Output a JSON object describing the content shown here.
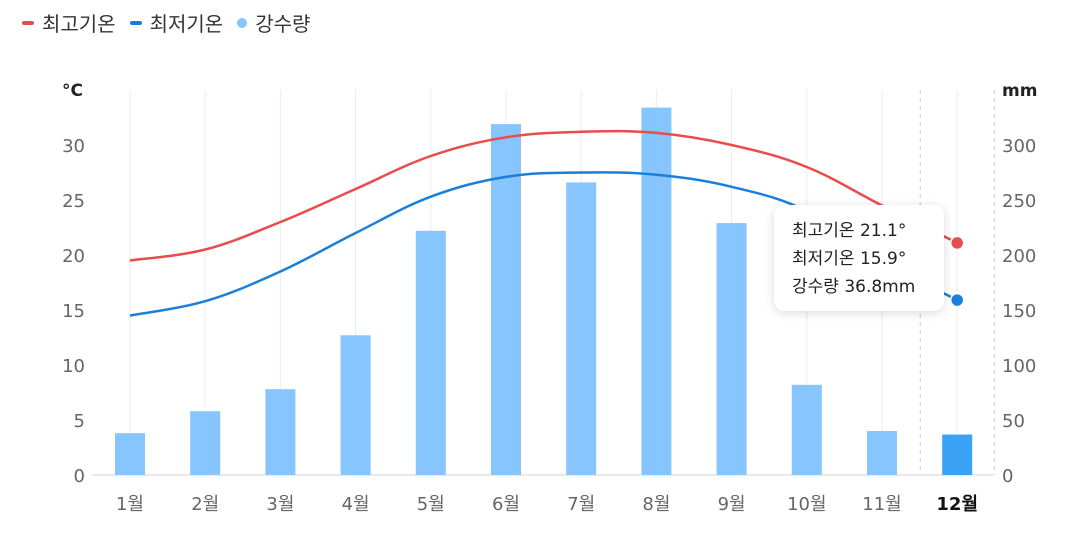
{
  "legend": {
    "high_label": "최고기온",
    "low_label": "최저기온",
    "rain_label": "강수량"
  },
  "tooltip": {
    "high": "최고기온 21.1°",
    "low": "최저기온 15.9°",
    "rain": "강수량 36.8mm"
  },
  "colors": {
    "high": "#e84c4c",
    "low": "#1a7fdc",
    "bar": "#86c5fd",
    "bar_selected": "#3aa3f5",
    "grid": "#ececec",
    "axis_text": "#666666"
  },
  "chart_data": {
    "type": "bar",
    "categories": [
      "1월",
      "2월",
      "3월",
      "4월",
      "5월",
      "6월",
      "7월",
      "8월",
      "9월",
      "10월",
      "11월",
      "12월"
    ],
    "selected_index": 11,
    "series": [
      {
        "name": "최고기온",
        "type": "line",
        "axis": "left",
        "values": [
          19.5,
          20.5,
          23.0,
          26.0,
          29.0,
          30.7,
          31.2,
          31.1,
          30.0,
          28.0,
          24.5,
          21.1
        ]
      },
      {
        "name": "최저기온",
        "type": "line",
        "axis": "left",
        "values": [
          14.5,
          15.8,
          18.5,
          22.0,
          25.3,
          27.1,
          27.5,
          27.3,
          26.2,
          24.0,
          19.5,
          15.9
        ]
      },
      {
        "name": "강수량",
        "type": "bar",
        "axis": "right",
        "values": [
          38,
          58,
          78,
          127,
          222,
          319,
          266,
          334,
          229,
          82,
          40,
          36.8
        ]
      }
    ],
    "y_left": {
      "label": "°C",
      "min": 0,
      "max": 35,
      "ticks": [
        0,
        5,
        10,
        15,
        20,
        25,
        30
      ]
    },
    "y_right": {
      "label": "mm",
      "min": 0,
      "max": 350,
      "ticks": [
        0,
        50,
        100,
        150,
        200,
        250,
        300
      ]
    },
    "grid": true,
    "legend_position": "top-left"
  }
}
